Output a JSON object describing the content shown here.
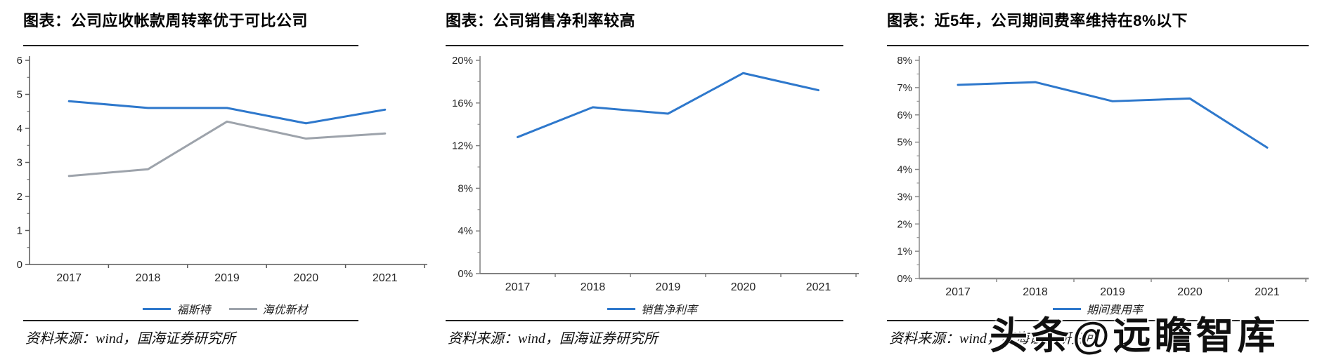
{
  "chart_data": [
    {
      "type": "line",
      "title": "图表：公司应收帐款周转率优于可比公司",
      "source": "资料来源：wind，国海证券研究所",
      "categories": [
        "2017",
        "2018",
        "2019",
        "2020",
        "2021"
      ],
      "series": [
        {
          "name": "福斯特",
          "color": "#2E78CC",
          "values": [
            4.8,
            4.6,
            4.6,
            4.15,
            4.55
          ]
        },
        {
          "name": "海优新材",
          "color": "#9DA3AB",
          "values": [
            2.6,
            2.8,
            4.2,
            3.7,
            3.85
          ]
        }
      ],
      "ylim": [
        0,
        6
      ],
      "ytick_step": 1,
      "value_format": "number",
      "xlabel": "",
      "ylabel": "",
      "grid": false,
      "legend_position": "bottom"
    },
    {
      "type": "line",
      "title": "图表：公司销售净利率较高",
      "source": "资料来源：wind，国海证券研究所",
      "categories": [
        "2017",
        "2018",
        "2019",
        "2020",
        "2021"
      ],
      "series": [
        {
          "name": "销售净利率",
          "color": "#2E78CC",
          "values": [
            12.8,
            15.6,
            15.0,
            18.8,
            17.2
          ]
        }
      ],
      "ylim": [
        0,
        20
      ],
      "ytick_step": 4,
      "value_format": "percent",
      "xlabel": "",
      "ylabel": "",
      "grid": false,
      "legend_position": "bottom"
    },
    {
      "type": "line",
      "title": "图表：近5年，公司期间费率维持在8%以下",
      "source": "资料来源：wind，国海证券研究所",
      "categories": [
        "2017",
        "2018",
        "2019",
        "2020",
        "2021"
      ],
      "series": [
        {
          "name": "期间费用率",
          "color": "#2E78CC",
          "values": [
            7.1,
            7.2,
            6.5,
            6.6,
            4.8
          ]
        }
      ],
      "ylim": [
        0,
        8
      ],
      "ytick_step": 1,
      "value_format": "percent",
      "xlabel": "",
      "ylabel": "",
      "grid": false,
      "legend_position": "bottom"
    }
  ],
  "watermark": {
    "text": "头条@远瞻智库"
  }
}
